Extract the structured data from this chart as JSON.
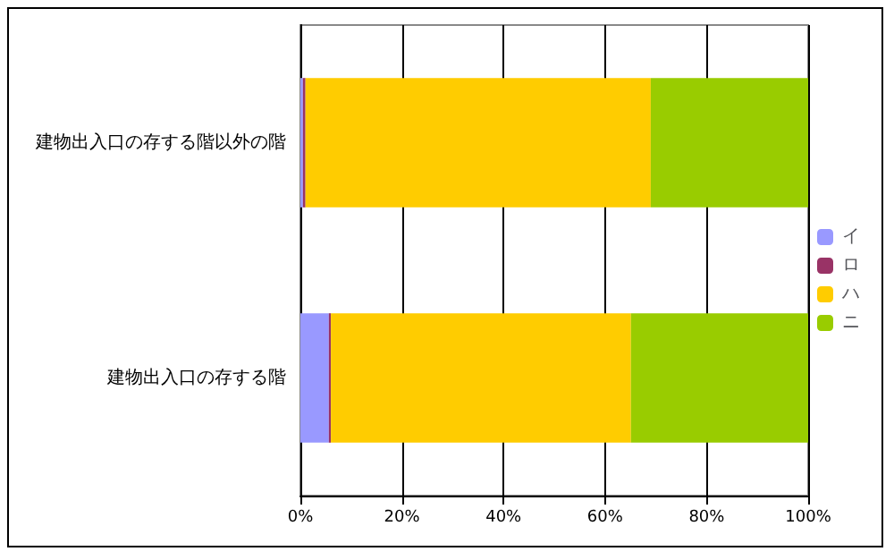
{
  "chart_data": {
    "type": "bar",
    "orientation": "horizontal",
    "stacked": true,
    "categories": [
      "建物出入口の存する階以外の階",
      "建物出入口の存する階"
    ],
    "series": [
      {
        "name": "イ",
        "color": "#9999ff",
        "values": [
          0.5,
          5.6
        ]
      },
      {
        "name": "ロ",
        "color": "#993366",
        "values": [
          0.5,
          0.4
        ]
      },
      {
        "name": "ハ",
        "color": "#ffcc00",
        "values": [
          68,
          59.1
        ]
      },
      {
        "name": "ニ",
        "color": "#99cc00",
        "values": [
          31,
          34.9
        ]
      }
    ],
    "xlim": [
      0,
      100
    ],
    "xticks": [
      {
        "value": 0,
        "label": "0%"
      },
      {
        "value": 20,
        "label": "20%"
      },
      {
        "value": 40,
        "label": "40%"
      },
      {
        "value": 60,
        "label": "60%"
      },
      {
        "value": 80,
        "label": "80%"
      },
      {
        "value": 100,
        "label": "100%"
      }
    ],
    "grid": "x",
    "legend": "right"
  }
}
